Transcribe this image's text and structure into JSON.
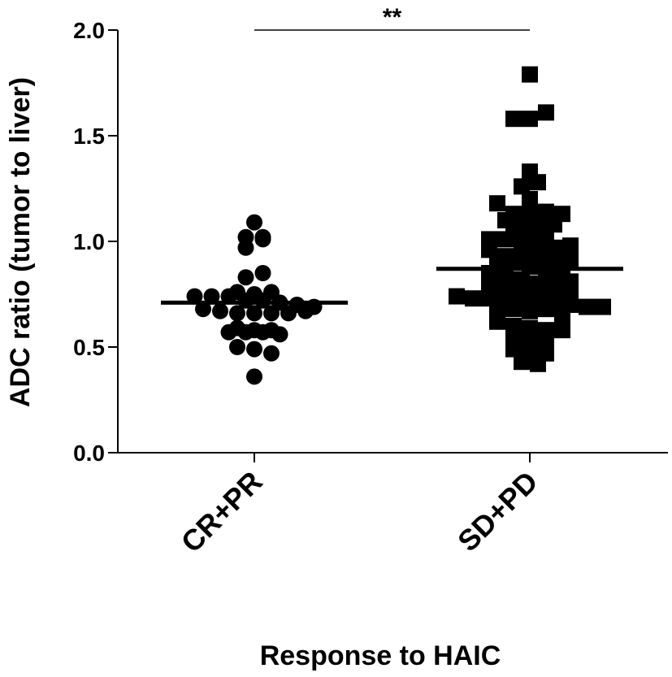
{
  "chart_data": {
    "type": "scatter",
    "title": "",
    "xlabel": "Response to HAIC",
    "ylabel": "ADC ratio (tumor to liver)",
    "ylim": [
      0,
      2.0
    ],
    "y_ticks": [
      "0.0",
      "0.5",
      "1.0",
      "1.5",
      "2.0"
    ],
    "grid": false,
    "categories": [
      "CR+PR",
      "SD+PD"
    ],
    "series": [
      {
        "category": "CR+PR",
        "marker": "circle",
        "mean": 0.71,
        "values": [
          1.09,
          1.02,
          0.97,
          1.01,
          1.02,
          0.83,
          0.85,
          0.74,
          0.76,
          0.75,
          0.76,
          0.74,
          0.74,
          0.72,
          0.72,
          0.71,
          0.7,
          0.69,
          0.68,
          0.67,
          0.66,
          0.66,
          0.66,
          0.66,
          0.67,
          0.59,
          0.58,
          0.57,
          0.57,
          0.57,
          0.56,
          0.58,
          0.5,
          0.49,
          0.47,
          0.36
        ]
      },
      {
        "category": "SD+PD",
        "marker": "square",
        "mean": 0.87,
        "values": [
          1.79,
          1.58,
          1.58,
          1.61,
          1.33,
          1.26,
          1.28,
          1.18,
          1.2,
          1.13,
          1.14,
          1.14,
          1.13,
          1.1,
          1.08,
          1.09,
          1.08,
          1.05,
          1.05,
          1.04,
          1.01,
          1.01,
          1.0,
          0.99,
          0.97,
          0.98,
          0.96,
          0.93,
          0.93,
          0.93,
          0.92,
          0.89,
          0.9,
          0.91,
          0.88,
          0.87,
          0.86,
          0.85,
          0.84,
          0.82,
          0.8,
          0.79,
          0.8,
          0.78,
          0.81,
          0.77,
          0.75,
          0.76,
          0.74,
          0.73,
          0.73,
          0.72,
          0.75,
          0.73,
          0.71,
          0.7,
          0.7,
          0.69,
          0.68,
          0.69,
          0.68,
          0.67,
          0.68,
          0.64,
          0.62,
          0.6,
          0.59,
          0.58,
          0.58,
          0.56,
          0.55,
          0.53,
          0.49,
          0.49,
          0.47,
          0.43,
          0.42
        ]
      }
    ],
    "significance": {
      "label": "**",
      "between": [
        "CR+PR",
        "SD+PD"
      ]
    }
  }
}
